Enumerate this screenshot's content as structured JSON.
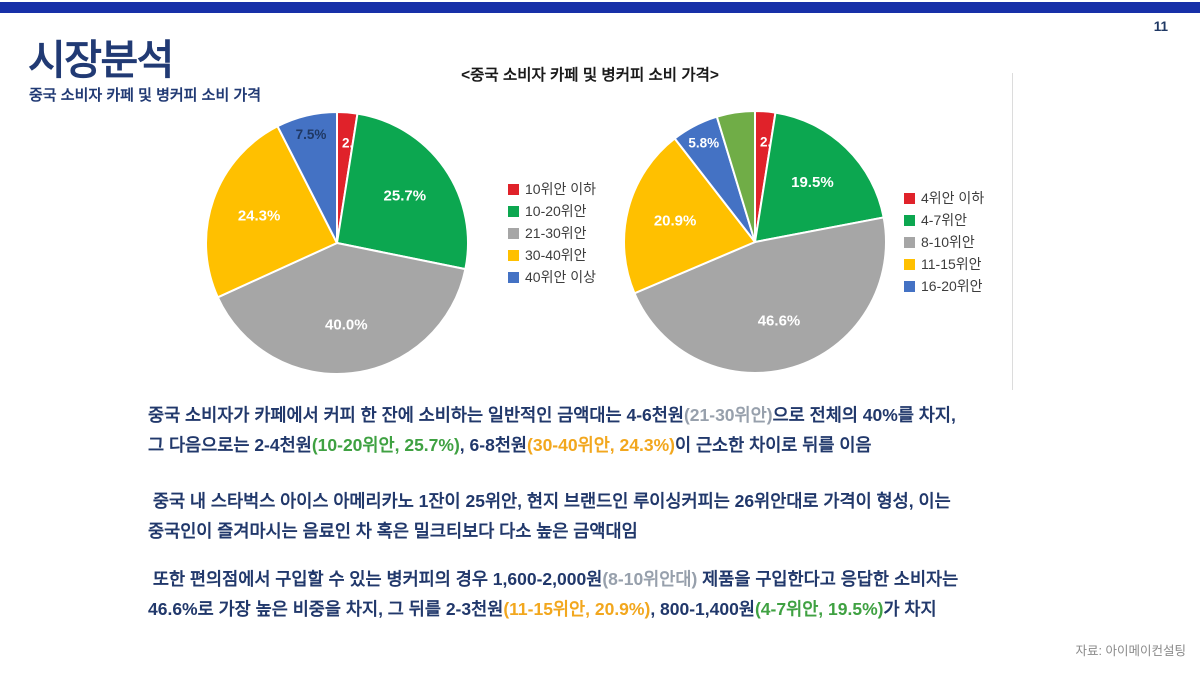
{
  "page": {
    "number": "11",
    "title": "시장분석",
    "subtitle": "중국 소비자 카페 및 병커피 소비 가격",
    "source_note": "자료: 아이메이컨설팅",
    "accent_bar_color": "#1730A8"
  },
  "chart_title": "<중국 소비자 카페 및 병커피 소비 가격>",
  "chart_data": [
    {
      "type": "pie",
      "name": "cafe-coffee-price-share",
      "title": "<중국 소비자 카페 및 병커피 소비 가격>",
      "legend_position": "right",
      "start_angle_deg": 0,
      "direction": "clockwise",
      "slices": [
        {
          "label": "10위안 이하",
          "value": 2.5,
          "color": "#E0222A",
          "label_color": "#FFFFFF"
        },
        {
          "label": "10-20위안",
          "value": 25.7,
          "color": "#0CA750",
          "label_color": "#FFFFFF"
        },
        {
          "label": "21-30위안",
          "value": 40.0,
          "color": "#A6A6A6",
          "label_color": "#FFFFFF"
        },
        {
          "label": "30-40위안",
          "value": 24.3,
          "color": "#FFC000",
          "label_color": "#FFFFFF"
        },
        {
          "label": "40위안 이상",
          "value": 7.5,
          "color": "#4472C4",
          "label_color": "#1F3864"
        }
      ]
    },
    {
      "type": "pie",
      "name": "bottled-coffee-price-share",
      "title": "<중국 소비자 카페 및 병커피 소비 가격>",
      "legend_position": "right",
      "start_angle_deg": 0,
      "direction": "clockwise",
      "slices": [
        {
          "label": "4위안 이하",
          "value": 2.5,
          "color": "#E0222A",
          "label_color": "#FFFFFF"
        },
        {
          "label": "4-7위안",
          "value": 19.5,
          "color": "#0CA750",
          "label_color": "#FFFFFF"
        },
        {
          "label": "8-10위안",
          "value": 46.6,
          "color": "#A6A6A6",
          "label_color": "#FFFFFF"
        },
        {
          "label": "11-15위안",
          "value": 20.9,
          "color": "#FFC000",
          "label_color": "#FFFFFF"
        },
        {
          "label": "16-20위안",
          "value": 5.8,
          "color": "#4472C4",
          "label_color": "#FFFFFF"
        },
        {
          "label": "",
          "value": 4.7,
          "color": "#70AD47",
          "label_color": "#FFFFFF",
          "show_label": false,
          "in_legend": false
        }
      ]
    }
  ],
  "text_colors": {
    "navy": "#21386B",
    "gray": "#97A0AC",
    "green": "#3FA142",
    "orange": "#F2A71E"
  },
  "body": {
    "paragraphs": [
      {
        "lines": [
          [
            {
              "t": "중국 소비자가 카페에서 커피 한 잔에 소비하는 일반적인 금액대는 4-6천원",
              "c": "navy"
            },
            {
              "t": "(21-30위안)",
              "c": "gray"
            },
            {
              "t": "으로 전체의 40%를 차지,",
              "c": "navy"
            }
          ],
          [
            {
              "t": "그 다음으로는 2-4천원",
              "c": "navy"
            },
            {
              "t": "(10-20위안, 25.7%)",
              "c": "green"
            },
            {
              "t": ", 6-8천원",
              "c": "navy"
            },
            {
              "t": "(30-40위안, 24.3%)",
              "c": "orange"
            },
            {
              "t": "이 근소한 차이로 뒤를 이음",
              "c": "navy"
            }
          ]
        ]
      },
      {
        "lines": [
          [
            {
              "t": " 중국 내 스타벅스 아이스 아메리카노 1잔이 25위안, 현지 브랜드인 루이싱커피는 26위안대로 가격이 형성, 이는",
              "c": "navy"
            }
          ],
          [
            {
              "t": "중국인이 즐겨마시는 음료인 차 혹은 밀크티보다 다소 높은 금액대임",
              "c": "navy"
            }
          ]
        ]
      },
      {
        "lines": [
          [
            {
              "t": " 또한 편의점에서 구입할 수 있는 병커피의 경우 1,600-2,000원",
              "c": "navy"
            },
            {
              "t": "(8-10위안대)",
              "c": "gray"
            },
            {
              "t": " 제품을 구입한다고 응답한 소비자는",
              "c": "navy"
            }
          ],
          [
            {
              "t": "46.6%로 가장 높은 비중을 차지, 그 뒤를 2-3천원",
              "c": "navy"
            },
            {
              "t": "(11-15위안, 20.9%)",
              "c": "orange"
            },
            {
              "t": ", 800-1,400원",
              "c": "navy"
            },
            {
              "t": "(4-7위안, 19.5%)",
              "c": "green"
            },
            {
              "t": "가 차지",
              "c": "navy"
            }
          ]
        ]
      }
    ]
  }
}
